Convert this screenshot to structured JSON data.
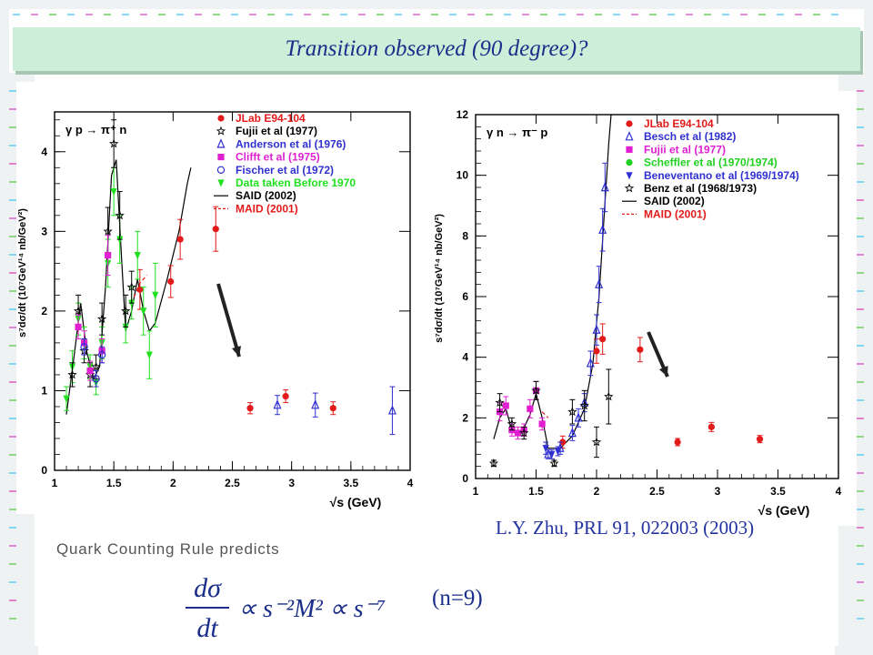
{
  "title": "Transition observed (90 degree)?",
  "reference": "L.Y. Zhu, PRL 91, 022003 (2003)",
  "quark_counting_label": "Quark Counting Rule predicts",
  "formula": {
    "lhs_num": "dσ",
    "lhs_den": "dt",
    "rhs": "∝ s⁻²M² ∝ s⁻⁷",
    "n_label": "(n=9)"
  },
  "colors": {
    "title_text": "#1a2e8a",
    "title_bg": "#cdeed9",
    "border_cyan": "#5fd0f0",
    "border_magenta": "#e060c8",
    "border_green": "#70d060",
    "jlab": "#e31a1a",
    "anderson": "#3030d0",
    "clifft": "#e020d0",
    "data_before_1970": "#20e020",
    "scheffler": "#20d020"
  },
  "chart_data": [
    {
      "type": "scatter",
      "reaction": "γ p → π⁺ n",
      "xlabel": "√s (GeV)",
      "ylabel": "s⁷dσ/dt (10⁷GeV¹⁴ nb/GeV²)",
      "xlim": [
        1,
        4
      ],
      "ylim": [
        0,
        4.5
      ],
      "xticks": [
        "1",
        "1.5",
        "2",
        "2.5",
        "3",
        "3.5",
        "4"
      ],
      "yticks": [
        "0",
        "1",
        "2",
        "3",
        "4"
      ],
      "legend": [
        {
          "name": "JLab E94-104",
          "color": "#e31a1a",
          "marker": "circle"
        },
        {
          "name": "Fujii et al (1977)",
          "color": "#000000",
          "marker": "star"
        },
        {
          "name": "Anderson et al (1976)",
          "color": "#3030d0",
          "marker": "triangle-open"
        },
        {
          "name": "Clifft et al (1975)",
          "color": "#e020d0",
          "marker": "square"
        },
        {
          "name": "Fischer et al (1972)",
          "color": "#3030d0",
          "marker": "circle-open"
        },
        {
          "name": "Data taken Before 1970",
          "color": "#20e020",
          "marker": "triangle-down"
        },
        {
          "name": "SAID (2002)",
          "color": "#000000",
          "marker": "line"
        },
        {
          "name": "MAID (2001)",
          "color": "#e31a1a",
          "marker": "dashed"
        }
      ],
      "series": [
        {
          "name": "JLab E94-104",
          "marker": "circle",
          "color": "#e31a1a",
          "points": [
            [
              1.72,
              2.27,
              0.25
            ],
            [
              1.98,
              2.37,
              0.2
            ],
            [
              2.06,
              2.9,
              0.25
            ],
            [
              2.36,
              3.03,
              0.28
            ],
            [
              2.65,
              0.78,
              0.07
            ],
            [
              2.95,
              0.93,
              0.08
            ],
            [
              3.35,
              0.78,
              0.08
            ]
          ]
        },
        {
          "name": "Anderson et al (1976)",
          "marker": "triangle-open",
          "color": "#3030d0",
          "points": [
            [
              2.88,
              0.82,
              0.12
            ],
            [
              3.2,
              0.82,
              0.15
            ],
            [
              3.85,
              0.75,
              0.3
            ]
          ]
        },
        {
          "name": "Data taken Before 1970",
          "marker": "triangle-down",
          "color": "#20e020",
          "points": [
            [
              1.1,
              0.9,
              0.15
            ],
            [
              1.15,
              1.3,
              0.2
            ],
            [
              1.2,
              1.9,
              0.2
            ],
            [
              1.25,
              1.6,
              0.2
            ],
            [
              1.3,
              1.3,
              0.15
            ],
            [
              1.35,
              1.1,
              0.15
            ],
            [
              1.4,
              1.6,
              0.2
            ],
            [
              1.45,
              2.6,
              0.3
            ],
            [
              1.5,
              3.5,
              0.3
            ],
            [
              1.55,
              2.9,
              0.3
            ],
            [
              1.6,
              1.8,
              0.2
            ],
            [
              1.65,
              2.1,
              0.2
            ],
            [
              1.7,
              2.7,
              0.3
            ],
            [
              1.75,
              2.0,
              0.3
            ],
            [
              1.8,
              1.45,
              0.3
            ],
            [
              1.85,
              2.2,
              0.4
            ]
          ]
        },
        {
          "name": "Fujii et al (1977)",
          "marker": "star",
          "color": "#000000",
          "points": [
            [
              1.15,
              1.2,
              0.15
            ],
            [
              1.2,
              2.0,
              0.2
            ],
            [
              1.25,
              1.5,
              0.15
            ],
            [
              1.3,
              1.2,
              0.15
            ],
            [
              1.35,
              1.3,
              0.15
            ],
            [
              1.4,
              1.9,
              0.2
            ],
            [
              1.45,
              3.0,
              0.3
            ],
            [
              1.5,
              4.1,
              0.3
            ],
            [
              1.55,
              3.2,
              0.3
            ],
            [
              1.6,
              2.0,
              0.2
            ],
            [
              1.65,
              2.3,
              0.2
            ]
          ]
        },
        {
          "name": "Clifft et al (1975)",
          "marker": "square",
          "color": "#e020d0",
          "points": [
            [
              1.2,
              1.8,
              0.15
            ],
            [
              1.25,
              1.6,
              0.15
            ],
            [
              1.3,
              1.25,
              0.12
            ],
            [
              1.4,
              1.5,
              0.15
            ],
            [
              1.45,
              2.7,
              0.25
            ]
          ]
        },
        {
          "name": "Fischer et al (1972)",
          "marker": "circle-open",
          "color": "#3030d0",
          "points": [
            [
              1.25,
              1.55,
              0.1
            ],
            [
              1.35,
              1.15,
              0.1
            ],
            [
              1.4,
              1.45,
              0.1
            ]
          ]
        }
      ],
      "curves": [
        {
          "name": "SAID (2002)",
          "style": "solid",
          "color": "#000000",
          "points": [
            [
              1.1,
              0.7
            ],
            [
              1.17,
              1.5
            ],
            [
              1.22,
              2.1
            ],
            [
              1.27,
              1.5
            ],
            [
              1.33,
              1.15
            ],
            [
              1.38,
              1.3
            ],
            [
              1.43,
              2.3
            ],
            [
              1.48,
              3.7
            ],
            [
              1.52,
              3.9
            ],
            [
              1.56,
              2.8
            ],
            [
              1.6,
              1.75
            ],
            [
              1.65,
              2.0
            ],
            [
              1.7,
              2.4
            ],
            [
              1.75,
              2.0
            ],
            [
              1.8,
              1.75
            ],
            [
              1.85,
              1.85
            ],
            [
              1.95,
              2.4
            ],
            [
              2.05,
              3.0
            ],
            [
              2.12,
              3.6
            ],
            [
              2.15,
              3.8
            ]
          ]
        },
        {
          "name": "MAID (2001)",
          "style": "dashed",
          "color": "#e31a1a",
          "points": [
            [
              1.65,
              2.1
            ],
            [
              1.72,
              2.35
            ],
            [
              1.78,
              2.45
            ]
          ]
        }
      ]
    },
    {
      "type": "scatter",
      "reaction": "γ n → π⁻ p",
      "xlabel": "√s (GeV)",
      "ylabel": "s⁷dσ/dt (10⁷GeV¹⁴ nb/GeV²)",
      "xlim": [
        1,
        4
      ],
      "ylim": [
        0,
        12
      ],
      "xticks": [
        "1",
        "1.5",
        "2",
        "2.5",
        "3",
        "3.5",
        "4"
      ],
      "yticks": [
        "0",
        "2",
        "4",
        "6",
        "8",
        "10",
        "12"
      ],
      "legend": [
        {
          "name": "JLab E94-104",
          "color": "#e31a1a",
          "marker": "circle"
        },
        {
          "name": "Besch et al (1982)",
          "color": "#3030d0",
          "marker": "triangle-open"
        },
        {
          "name": "Fujii et al (1977)",
          "color": "#e020d0",
          "marker": "square"
        },
        {
          "name": "Scheffler et al (1970/1974)",
          "color": "#20d020",
          "marker": "circle"
        },
        {
          "name": "Beneventano et al (1969/1974)",
          "color": "#3030d0",
          "marker": "triangle-down"
        },
        {
          "name": "Benz et al (1968/1973)",
          "color": "#000000",
          "marker": "star"
        },
        {
          "name": "SAID (2002)",
          "color": "#000000",
          "marker": "line"
        },
        {
          "name": "MAID (2001)",
          "color": "#e31a1a",
          "marker": "dashed"
        }
      ],
      "series": [
        {
          "name": "JLab E94-104",
          "marker": "circle",
          "color": "#e31a1a",
          "points": [
            [
              1.72,
              1.2,
              0.2
            ],
            [
              2.0,
              4.2,
              0.4
            ],
            [
              2.05,
              4.6,
              0.5
            ],
            [
              2.36,
              4.25,
              0.4
            ],
            [
              2.67,
              1.2,
              0.12
            ],
            [
              2.95,
              1.7,
              0.15
            ],
            [
              3.35,
              1.3,
              0.12
            ]
          ]
        },
        {
          "name": "Besch et al (1982)",
          "marker": "triangle-open",
          "color": "#3030d0",
          "points": [
            [
              1.6,
              0.8,
              0.15
            ],
            [
              1.7,
              1.0,
              0.2
            ],
            [
              1.8,
              1.5,
              0.25
            ],
            [
              1.85,
              2.0,
              0.3
            ],
            [
              1.9,
              2.5,
              0.3
            ],
            [
              1.95,
              3.8,
              0.4
            ],
            [
              2.0,
              4.9,
              0.5
            ],
            [
              2.02,
              6.4,
              0.6
            ],
            [
              2.05,
              8.2,
              0.7
            ],
            [
              2.07,
              9.6,
              0.8
            ]
          ]
        },
        {
          "name": "Fujii et al (1977)",
          "marker": "square",
          "color": "#e020d0",
          "points": [
            [
              1.2,
              2.2,
              0.3
            ],
            [
              1.25,
              2.4,
              0.3
            ],
            [
              1.3,
              1.6,
              0.2
            ],
            [
              1.35,
              1.5,
              0.2
            ],
            [
              1.4,
              1.6,
              0.2
            ],
            [
              1.45,
              2.3,
              0.3
            ],
            [
              1.5,
              2.9,
              0.3
            ],
            [
              1.55,
              1.8,
              0.2
            ]
          ]
        },
        {
          "name": "Benz et al (1968/1973)",
          "marker": "star",
          "color": "#000000",
          "points": [
            [
              1.15,
              0.5,
              0.1
            ],
            [
              1.2,
              2.5,
              0.3
            ],
            [
              1.3,
              1.8,
              0.2
            ],
            [
              1.4,
              1.5,
              0.2
            ],
            [
              1.5,
              2.9,
              0.3
            ],
            [
              1.65,
              0.5,
              0.1
            ],
            [
              1.8,
              2.2,
              0.4
            ],
            [
              1.9,
              2.4,
              0.5
            ],
            [
              2.0,
              1.2,
              0.5
            ],
            [
              2.1,
              2.7,
              0.9
            ]
          ]
        },
        {
          "name": "Beneventano et al (1969/1974)",
          "marker": "triangle-down",
          "color": "#3030d0",
          "points": [
            [
              1.58,
              1.0,
              0.2
            ],
            [
              1.63,
              0.8,
              0.15
            ],
            [
              1.68,
              0.9,
              0.15
            ]
          ]
        }
      ],
      "curves": [
        {
          "name": "SAID (2002)",
          "style": "solid",
          "color": "#000000",
          "points": [
            [
              1.15,
              1.3
            ],
            [
              1.2,
              2.0
            ],
            [
              1.25,
              2.3
            ],
            [
              1.3,
              1.6
            ],
            [
              1.38,
              1.5
            ],
            [
              1.45,
              2.1
            ],
            [
              1.5,
              2.8
            ],
            [
              1.55,
              2.0
            ],
            [
              1.6,
              1.0
            ],
            [
              1.7,
              1.0
            ],
            [
              1.8,
              1.4
            ],
            [
              1.9,
              2.3
            ],
            [
              1.97,
              3.8
            ],
            [
              2.02,
              6.0
            ],
            [
              2.06,
              8.5
            ],
            [
              2.1,
              11.0
            ],
            [
              2.12,
              12.0
            ]
          ]
        },
        {
          "name": "MAID (2001)",
          "style": "dashed",
          "color": "#e31a1a",
          "points": [
            [
              1.55,
              2.2
            ],
            [
              1.6,
              2.0
            ]
          ]
        }
      ]
    }
  ]
}
